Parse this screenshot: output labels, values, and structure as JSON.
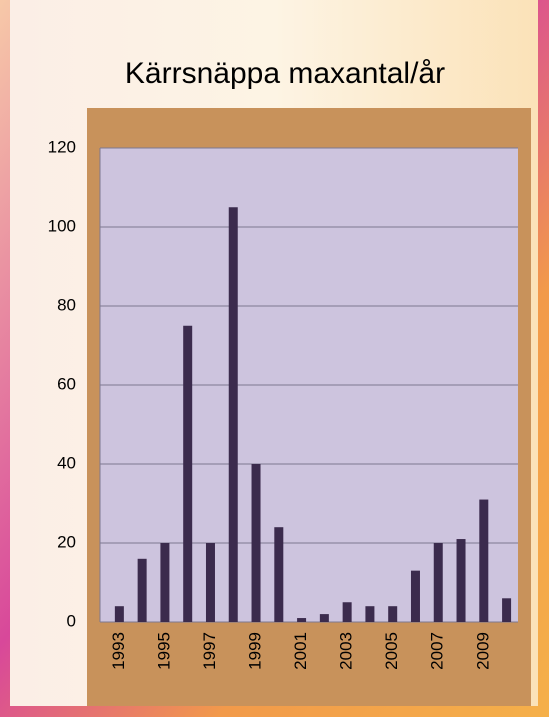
{
  "chart_data": {
    "type": "bar",
    "title": "Kärrsnäppa maxantal/år",
    "categories": [
      "1993",
      null,
      "1995",
      null,
      "1997",
      null,
      "1999",
      null,
      "2001",
      null,
      "2003",
      null,
      "2005",
      null,
      "2007",
      null,
      "2009",
      null
    ],
    "values": [
      4,
      16,
      20,
      75,
      20,
      105,
      40,
      24,
      1,
      2,
      5,
      4,
      4,
      13,
      20,
      21,
      31,
      6
    ],
    "color": "#3b2b4d",
    "ylim": [
      0,
      120
    ],
    "yticks": [
      0,
      20,
      40,
      60,
      80,
      100,
      120
    ],
    "grid": true
  }
}
